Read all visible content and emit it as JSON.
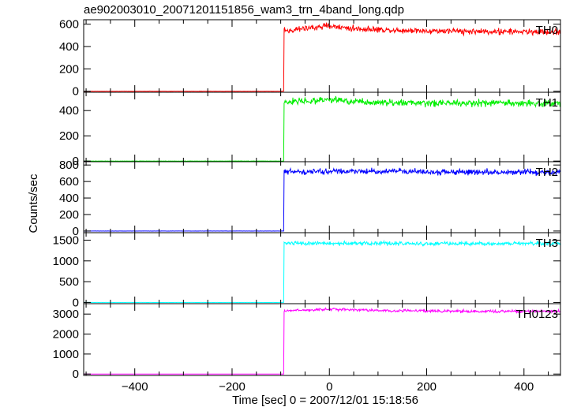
{
  "chart_data": {
    "type": "line",
    "title": "ae902003010_20071201151856_wam3_trn_4band_long.qdp",
    "xlabel": "Time [sec] 0 = 2007/12/01 15:18:56",
    "ylabel": "Counts/sec",
    "xlim": [
      -505,
      475
    ],
    "x_ticks": [
      -400,
      -200,
      0,
      200,
      400
    ],
    "x_tick_labels": [
      "−400",
      "−200",
      "0",
      "200",
      "400"
    ],
    "onset_time": -93,
    "time_step": 1,
    "panels": [
      {
        "name": "TH0",
        "color": "#ff0000",
        "ylim": [
          -10,
          640
        ],
        "y_ticks": [
          0,
          200,
          400,
          600
        ],
        "y_tick_labels": [
          "0",
          "200",
          "400",
          "600"
        ],
        "pre_level": 0,
        "segments": [
          [
            -93,
            540
          ],
          [
            0,
            585
          ],
          [
            50,
            560
          ],
          [
            150,
            545
          ],
          [
            300,
            535
          ],
          [
            475,
            530
          ]
        ],
        "noise": 22
      },
      {
        "name": "TH1",
        "color": "#00ee00",
        "ylim": [
          -5,
          545
        ],
        "y_ticks": [
          0,
          200,
          400
        ],
        "y_tick_labels": [
          "0",
          "200",
          "400"
        ],
        "pre_level": 0,
        "segments": [
          [
            -93,
            470
          ],
          [
            0,
            485
          ],
          [
            100,
            465
          ],
          [
            300,
            460
          ],
          [
            475,
            460
          ]
        ],
        "noise": 22
      },
      {
        "name": "TH2",
        "color": "#0000ff",
        "ylim": [
          -20,
          840
        ],
        "y_ticks": [
          0,
          200,
          400,
          600,
          800
        ],
        "y_tick_labels": [
          "0",
          "200",
          "400",
          "600",
          "800"
        ],
        "pre_level": 0,
        "segments": [
          [
            -93,
            720
          ],
          [
            100,
            725
          ],
          [
            300,
            715
          ],
          [
            475,
            715
          ]
        ],
        "noise": 28
      },
      {
        "name": "TH3",
        "color": "#00ffff",
        "ylim": [
          -30,
          1680
        ],
        "y_ticks": [
          0,
          500,
          1000,
          1500
        ],
        "y_tick_labels": [
          "0",
          "500",
          "1000",
          "1500"
        ],
        "pre_level": 0,
        "segments": [
          [
            -93,
            1430
          ],
          [
            200,
            1420
          ],
          [
            475,
            1420
          ]
        ],
        "noise": 38
      },
      {
        "name": "TH0123",
        "color": "#ff00ff",
        "ylim": [
          -70,
          3520
        ],
        "y_ticks": [
          0,
          1000,
          2000,
          3000
        ],
        "y_tick_labels": [
          "0",
          "1000",
          "2000",
          "3000"
        ],
        "pre_level": 0,
        "segments": [
          [
            -93,
            3150
          ],
          [
            0,
            3250
          ],
          [
            100,
            3180
          ],
          [
            300,
            3130
          ],
          [
            475,
            3130
          ]
        ],
        "noise": 55
      }
    ]
  }
}
